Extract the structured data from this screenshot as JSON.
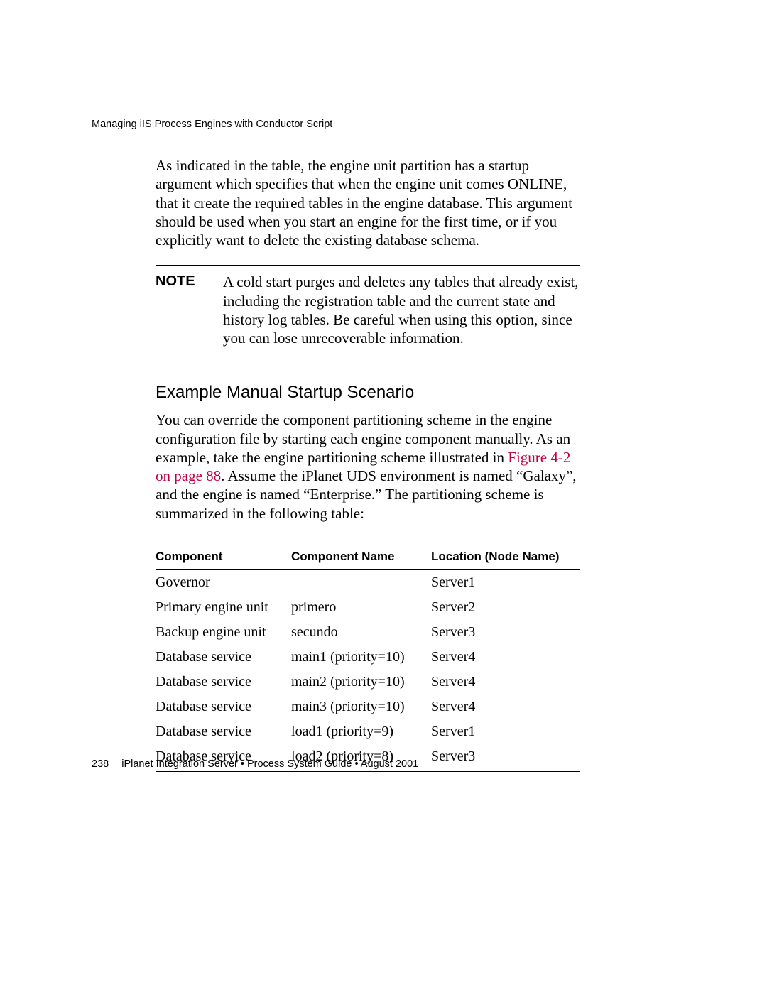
{
  "running_header": "Managing iIS Process Engines with Conductor Script",
  "intro_paragraph": "As indicated in the table, the engine unit partition has a startup argument which specifies that when the engine unit comes ONLINE, that it create the required tables in the engine database. This argument should be used when you start an engine for the first time, or if you explicitly want to delete the existing database schema.",
  "note": {
    "label": "NOTE",
    "text": "A cold start purges and deletes any tables that already exist, including the registration table and the current state and history log tables. Be careful when using this option, since you can lose unrecoverable information."
  },
  "section_heading": "Example Manual Startup Scenario",
  "section_para_pre": "You can override the component partitioning scheme in the engine configuration file by starting each engine component manually. As an example, take the engine partitioning scheme illustrated in ",
  "xref_text": "Figure 4-2 on page 88",
  "section_para_post": ". Assume the iPlanet UDS environment is named “Galaxy”, and the engine is named “Enterprise.” The partitioning scheme is summarized in the following table:",
  "table": {
    "columns": [
      "Component",
      "Component Name",
      "Location (Node Name)"
    ],
    "rows": [
      [
        "Governor",
        "",
        "Server1"
      ],
      [
        "Primary engine unit",
        "primero",
        "Server2"
      ],
      [
        "Backup engine unit",
        "secundo",
        "Server3"
      ],
      [
        "Database service",
        "main1 (priority=10)",
        "Server4"
      ],
      [
        "Database service",
        "main2 (priority=10)",
        "Server4"
      ],
      [
        "Database service",
        "main3 (priority=10)",
        "Server4"
      ],
      [
        "Database service",
        "load1 (priority=9)",
        "Server1"
      ],
      [
        "Database service",
        "load2 (priority=8)",
        "Server3"
      ]
    ]
  },
  "footer": {
    "page_number": "238",
    "text": "iPlanet Integration Server • Process System Guide • August 2001"
  },
  "colors": {
    "text": "#000000",
    "xref": "#c00040",
    "background": "#ffffff"
  }
}
